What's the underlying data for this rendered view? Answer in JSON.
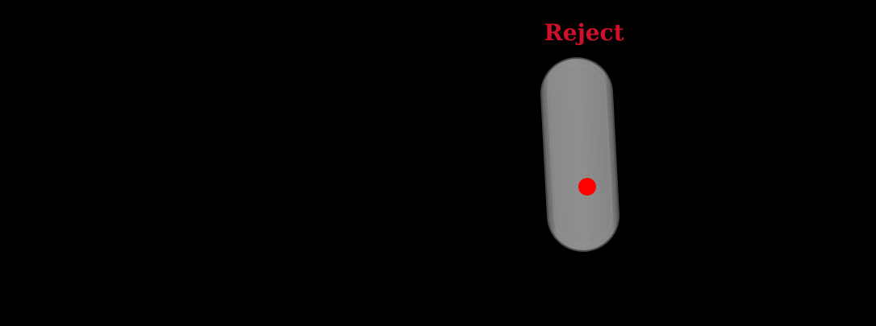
{
  "label": "Reject"
}
